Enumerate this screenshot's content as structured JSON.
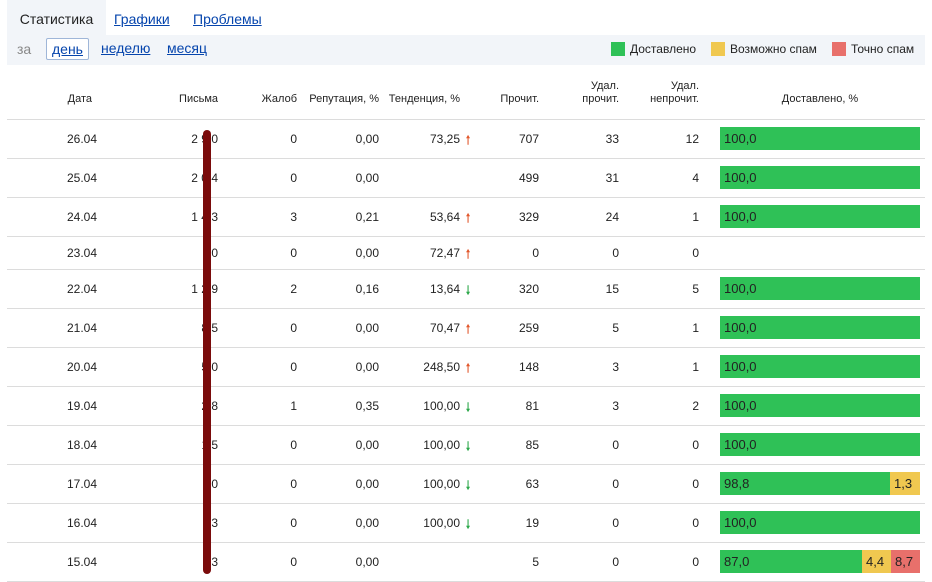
{
  "tabs": {
    "statistics": "Статистика",
    "graphs": "Графики",
    "problems": "Проблемы"
  },
  "period": {
    "label": "за",
    "day": "день",
    "week": "неделю",
    "month": "месяц"
  },
  "legend": {
    "delivered": "Доставлено",
    "maybe_spam": "Возможно спам",
    "spam": "Точно спам"
  },
  "colors": {
    "delivered": "#2fc157",
    "maybe_spam": "#f0c850",
    "spam": "#e8706b",
    "trend_up": "#e2572b",
    "trend_down": "#2ca84a"
  },
  "headers": {
    "date": "Дата",
    "letters": "Письма",
    "complaints": "Жалоб",
    "reputation": "Репутация, %",
    "trend": "Тенденция, %",
    "read": "Прочит.",
    "deleted_read_1": "Удал.",
    "deleted_read_2": "прочит.",
    "deleted_unread_1": "Удал.",
    "deleted_unread_2": "непрочит.",
    "delivered_pct": "Доставлено, %"
  },
  "rows": [
    {
      "date": "26.04",
      "letters": "2 9 0",
      "complaints": "0",
      "reputation": "0,00",
      "trend": "73,25",
      "trend_dir": "up",
      "read": "707",
      "del_read": "33",
      "del_unread": "12",
      "segments": [
        {
          "type": "delivered",
          "value": "100,0",
          "pct": 100
        }
      ]
    },
    {
      "date": "25.04",
      "letters": "2 0 4",
      "complaints": "0",
      "reputation": "0,00",
      "trend": "",
      "trend_dir": "",
      "read": "499",
      "del_read": "31",
      "del_unread": "4",
      "segments": [
        {
          "type": "delivered",
          "value": "100,0",
          "pct": 100
        }
      ]
    },
    {
      "date": "24.04",
      "letters": "1 4 3",
      "complaints": "3",
      "reputation": "0,21",
      "trend": "53,64",
      "trend_dir": "up",
      "read": "329",
      "del_read": "24",
      "del_unread": "1",
      "segments": [
        {
          "type": "delivered",
          "value": "100,0",
          "pct": 100
        }
      ]
    },
    {
      "date": "23.04",
      "letters": "0",
      "complaints": "0",
      "reputation": "0,00",
      "trend": "72,47",
      "trend_dir": "up",
      "read": "0",
      "del_read": "0",
      "del_unread": "0",
      "segments": []
    },
    {
      "date": "22.04",
      "letters": "1 2 9",
      "complaints": "2",
      "reputation": "0,16",
      "trend": "13,64",
      "trend_dir": "down",
      "read": "320",
      "del_read": "15",
      "del_unread": "5",
      "segments": [
        {
          "type": "delivered",
          "value": "100,0",
          "pct": 100
        }
      ]
    },
    {
      "date": "21.04",
      "letters": "8 5",
      "complaints": "0",
      "reputation": "0,00",
      "trend": "70,47",
      "trend_dir": "up",
      "read": "259",
      "del_read": "5",
      "del_unread": "1",
      "segments": [
        {
          "type": "delivered",
          "value": "100,0",
          "pct": 100
        }
      ]
    },
    {
      "date": "20.04",
      "letters": "5 0",
      "complaints": "0",
      "reputation": "0,00",
      "trend": "248,50",
      "trend_dir": "up",
      "read": "148",
      "del_read": "3",
      "del_unread": "1",
      "segments": [
        {
          "type": "delivered",
          "value": "100,0",
          "pct": 100
        }
      ]
    },
    {
      "date": "19.04",
      "letters": "2 8",
      "complaints": "1",
      "reputation": "0,35",
      "trend": "100,00",
      "trend_dir": "down",
      "read": "81",
      "del_read": "3",
      "del_unread": "2",
      "segments": [
        {
          "type": "delivered",
          "value": "100,0",
          "pct": 100
        }
      ]
    },
    {
      "date": "18.04",
      "letters": "1 5",
      "complaints": "0",
      "reputation": "0,00",
      "trend": "100,00",
      "trend_dir": "down",
      "read": "85",
      "del_read": "0",
      "del_unread": "0",
      "segments": [
        {
          "type": "delivered",
          "value": "100,0",
          "pct": 100
        }
      ]
    },
    {
      "date": "17.04",
      "letters": "0",
      "complaints": "0",
      "reputation": "0,00",
      "trend": "100,00",
      "trend_dir": "down",
      "read": "63",
      "del_read": "0",
      "del_unread": "0",
      "segments": [
        {
          "type": "delivered",
          "value": "98,8",
          "pct": 85
        },
        {
          "type": "maybe_spam",
          "value": "1,3",
          "pct": 15
        }
      ]
    },
    {
      "date": "16.04",
      "letters": "3",
      "complaints": "0",
      "reputation": "0,00",
      "trend": "100,00",
      "trend_dir": "down",
      "read": "19",
      "del_read": "0",
      "del_unread": "0",
      "segments": [
        {
          "type": "delivered",
          "value": "100,0",
          "pct": 100
        }
      ]
    },
    {
      "date": "15.04",
      "letters": "3",
      "complaints": "0",
      "reputation": "0,00",
      "trend": "",
      "trend_dir": "",
      "read": "5",
      "del_read": "0",
      "del_unread": "0",
      "segments": [
        {
          "type": "delivered",
          "value": "87,0",
          "pct": 71
        },
        {
          "type": "maybe_spam",
          "value": "4,4",
          "pct": 14.5
        },
        {
          "type": "spam",
          "value": "8,7",
          "pct": 14.5
        }
      ]
    }
  ]
}
